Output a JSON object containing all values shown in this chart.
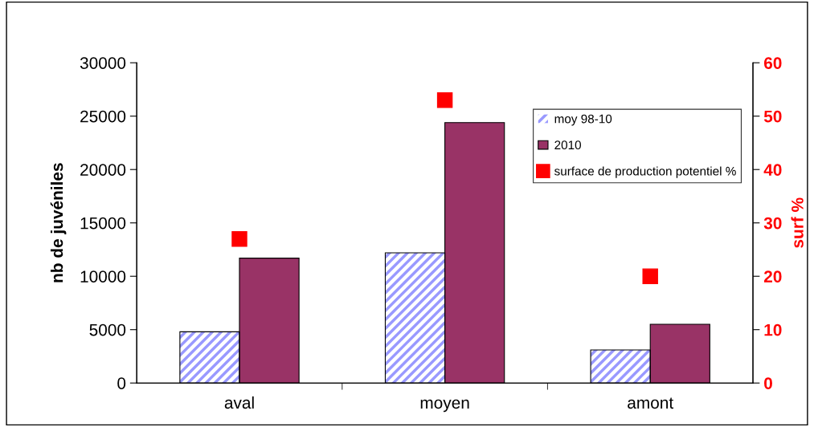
{
  "chart_data": {
    "type": "bar",
    "ylabel": "nb de juvéniles",
    "y2label": "surf %",
    "categories": [
      "aval",
      "moyen",
      "amont"
    ],
    "series": [
      {
        "name": "moy 98-10",
        "color": "#9999ff",
        "values": [
          4800,
          12200,
          3100
        ]
      },
      {
        "name": "2010",
        "color": "#993366",
        "values": [
          11700,
          24400,
          5500
        ]
      },
      {
        "name": "surface de production potentiel %",
        "type": "scatter",
        "axis": "y2",
        "color": "#ff0000",
        "marker": "square",
        "values": [
          27,
          53,
          20
        ]
      }
    ],
    "ylim": [
      0,
      30000
    ],
    "yticks": [
      0,
      5000,
      10000,
      15000,
      20000,
      25000,
      30000
    ],
    "y2lim": [
      0,
      60
    ],
    "y2ticks": [
      0,
      10,
      20,
      30,
      40,
      50,
      60
    ],
    "grid": false,
    "legend": "right"
  }
}
